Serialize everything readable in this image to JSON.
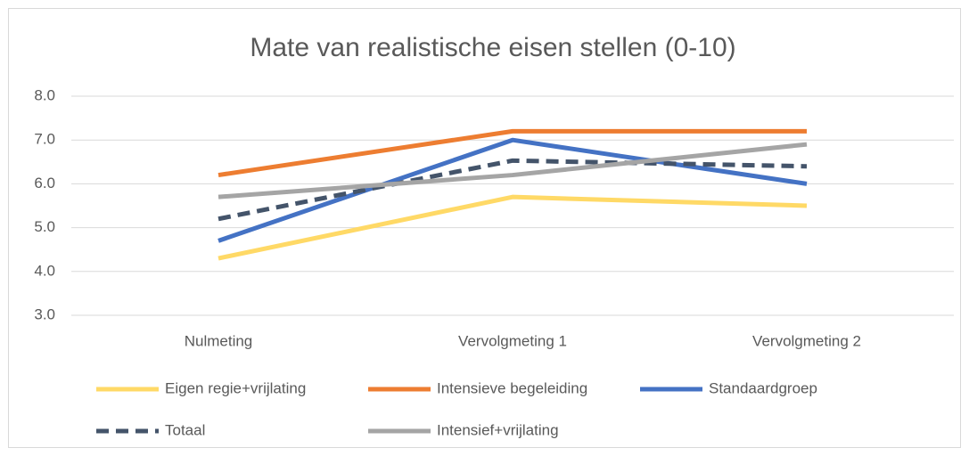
{
  "chart_data": {
    "type": "line",
    "title": "Mate van realistische eisen stellen (0-10)",
    "categories": [
      "Nulmeting",
      "Vervolgmeting 1",
      "Vervolgmeting 2"
    ],
    "series": [
      {
        "name": "Eigen regie+vrijlating",
        "color": "#ffd966",
        "values": [
          4.3,
          5.7,
          5.5
        ]
      },
      {
        "name": "Intensieve begeleiding",
        "color": "#ed7d31",
        "values": [
          6.2,
          7.2,
          7.2
        ]
      },
      {
        "name": "Standaardgroep",
        "color": "#4472c4",
        "values": [
          4.7,
          7.0,
          6.0
        ]
      },
      {
        "name": "Totaal",
        "color": "#44546a",
        "dashed": true,
        "values": [
          5.2,
          6.53,
          6.4
        ]
      },
      {
        "name": "Intensief+vrijlating",
        "color": "#a5a5a5",
        "values": [
          5.7,
          6.2,
          6.9
        ]
      }
    ],
    "ylim": [
      3,
      8
    ],
    "yticks": [
      {
        "value": 3,
        "label": "3.0"
      },
      {
        "value": 4,
        "label": "4.0"
      },
      {
        "value": 5,
        "label": "5.0"
      },
      {
        "value": 6,
        "label": "6.0"
      },
      {
        "value": 7,
        "label": "7.0"
      },
      {
        "value": 8,
        "label": "8.0"
      }
    ],
    "grid": true,
    "legend": "bottom"
  }
}
